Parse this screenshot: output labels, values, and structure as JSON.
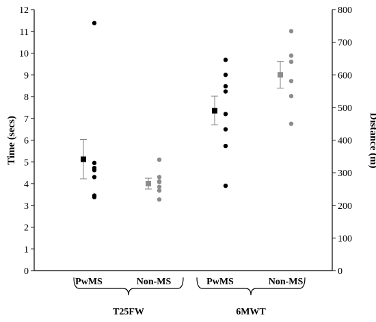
{
  "chart_data": {
    "type": "scatter",
    "y_left": {
      "label": "Time (secs)",
      "range": [
        0,
        12
      ],
      "ticks": [
        "0",
        "1",
        "2",
        "3",
        "4",
        "5",
        "6",
        "7",
        "8",
        "9",
        "10",
        "11",
        "12"
      ]
    },
    "y_right": {
      "label": "Distance (m)",
      "range": [
        0,
        800
      ],
      "ticks": [
        "0",
        "100",
        "200",
        "300",
        "400",
        "500",
        "600",
        "700",
        "800"
      ]
    },
    "categories": [
      "PwMS",
      "Non-MS",
      "PwMS",
      "Non-MS"
    ],
    "groups": [
      "T25FW",
      "6MWT"
    ],
    "colors": {
      "pwms": "#000000",
      "nonms": "#8c8c8c",
      "errorbar": "#7f7f7f",
      "axis": "#000000"
    },
    "series": [
      {
        "group": "T25FW",
        "category": "PwMS",
        "axis": "left",
        "color": "#000000",
        "points": [
          11.38,
          4.95,
          4.72,
          4.62,
          4.3,
          3.45,
          3.38
        ],
        "mean": 5.12,
        "error": [
          4.22,
          6.03
        ]
      },
      {
        "group": "T25FW",
        "category": "Non-MS",
        "axis": "left",
        "color": "#8c8c8c",
        "points": [
          5.1,
          4.3,
          4.1,
          4.07,
          3.85,
          3.68,
          3.27
        ],
        "mean": 4.0,
        "error": [
          3.75,
          4.25
        ]
      },
      {
        "group": "6MWT",
        "category": "PwMS",
        "axis": "right",
        "color": "#000000",
        "points": [
          646,
          600,
          565,
          549,
          480,
          433,
          382,
          260
        ],
        "mean": 490,
        "error": [
          447,
          535
        ]
      },
      {
        "group": "6MWT",
        "category": "Non-MS",
        "axis": "right",
        "color": "#8c8c8c",
        "points": [
          734,
          659,
          640,
          581,
          535,
          450
        ],
        "mean": 600,
        "error": [
          559,
          641
        ]
      }
    ]
  }
}
